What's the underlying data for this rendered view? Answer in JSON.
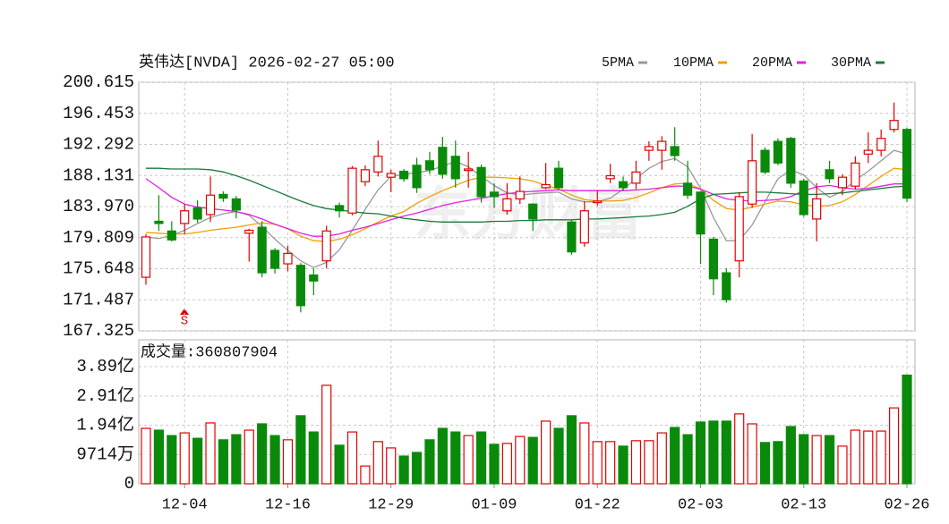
{
  "chart_data": [
    {
      "type": "candlestick",
      "title": "英伟达[NVDA] 2026-02-27 05:00",
      "up_color": "#e00000",
      "down_color": "#0a8a0a",
      "open": [
        174.5,
        182.0,
        180.7,
        181.7,
        183.8,
        182.9,
        185.6,
        185.0,
        180.4,
        181.2,
        178.1,
        176.3,
        176.1,
        174.8,
        176.7,
        184.1,
        183.1,
        187.3,
        188.6,
        187.9,
        188.7,
        189.5,
        190.1,
        191.9,
        190.7,
        188.8,
        189.2,
        185.9,
        183.4,
        185.0,
        184.3,
        186.5,
        189.1,
        181.9,
        179.1,
        184.5,
        187.7,
        187.3,
        187.1,
        191.5,
        191.5,
        192.0,
        187.1,
        185.9,
        179.6,
        175.1,
        176.7,
        184.3,
        191.5,
        192.7,
        193.1,
        187.4,
        182.3,
        188.9,
        186.5,
        186.7,
        191.0,
        191.5,
        194.3,
        194.3
      ],
      "high": [
        180.3,
        185.5,
        182.0,
        184.3,
        184.8,
        188.0,
        186.0,
        185.4,
        181.0,
        182.0,
        178.4,
        178.7,
        176.4,
        175.7,
        181.4,
        184.5,
        189.4,
        189.5,
        192.8,
        188.9,
        189.0,
        190.5,
        191.3,
        193.3,
        192.8,
        191.3,
        189.6,
        187.1,
        187.1,
        188.0,
        184.4,
        189.8,
        190.1,
        182.1,
        184.7,
        186.1,
        189.7,
        188.0,
        190.1,
        192.7,
        193.4,
        194.6,
        190.1,
        186.0,
        179.9,
        175.7,
        185.9,
        193.7,
        191.9,
        193.1,
        193.3,
        187.7,
        187.1,
        190.1,
        188.3,
        190.7,
        193.9,
        194.3,
        197.9,
        194.5
      ],
      "low": [
        173.5,
        180.7,
        179.3,
        180.3,
        181.8,
        181.9,
        184.6,
        182.4,
        176.6,
        174.5,
        175.0,
        175.3,
        169.8,
        172.1,
        175.7,
        182.5,
        182.8,
        186.7,
        188.0,
        185.9,
        187.3,
        185.8,
        188.3,
        187.7,
        186.5,
        186.5,
        184.5,
        183.8,
        182.9,
        184.3,
        180.7,
        186.3,
        186.3,
        177.5,
        178.6,
        184.1,
        187.1,
        186.1,
        186.3,
        190.1,
        188.9,
        190.1,
        185.0,
        176.3,
        172.1,
        171.1,
        174.5,
        183.8,
        188.3,
        189.5,
        186.5,
        182.6,
        179.3,
        187.1,
        185.5,
        186.3,
        189.8,
        190.7,
        193.9,
        184.6
      ],
      "close": [
        179.9,
        181.7,
        179.5,
        183.4,
        182.3,
        185.5,
        185.1,
        183.5,
        180.8,
        175.1,
        175.7,
        177.7,
        170.7,
        174.0,
        180.7,
        183.4,
        189.1,
        188.9,
        190.7,
        188.4,
        187.7,
        186.5,
        188.9,
        188.3,
        187.7,
        189.0,
        185.3,
        185.3,
        185.0,
        186.0,
        182.3,
        186.9,
        186.5,
        177.9,
        183.4,
        184.7,
        188.1,
        186.5,
        188.6,
        192.0,
        192.7,
        190.8,
        185.5,
        180.3,
        174.3,
        171.5,
        185.3,
        190.1,
        188.6,
        189.8,
        187.1,
        182.9,
        185.0,
        187.7,
        187.9,
        189.8,
        191.5,
        193.1,
        195.5,
        185.1
      ],
      "series": [
        {
          "name": "5PMA",
          "color": "#999999",
          "values": [
            179.9,
            179.7,
            180.1,
            180.8,
            181.7,
            182.5,
            183.0,
            183.3,
            182.8,
            181.3,
            179.6,
            178.1,
            176.7,
            175.8,
            176.5,
            178.2,
            180.8,
            183.6,
            186.2,
            188.0,
            188.3,
            188.5,
            188.8,
            189.4,
            190.0,
            189.3,
            188.0,
            186.8,
            185.8,
            185.5,
            185.7,
            185.8,
            185.9,
            185.0,
            184.6,
            184.6,
            185.1,
            186.3,
            187.7,
            189.1,
            190.0,
            190.4,
            189.3,
            186.4,
            182.5,
            179.4,
            179.4,
            181.5,
            184.6,
            187.7,
            188.9,
            188.2,
            186.5,
            185.2,
            186.0,
            187.5,
            188.7,
            190.1,
            191.5,
            191.0
          ]
        },
        {
          "name": "10PMA",
          "color": "#f0a000",
          "values": [
            180.5,
            180.4,
            180.3,
            180.3,
            180.5,
            180.8,
            181.0,
            181.2,
            181.5,
            181.8,
            181.6,
            181.0,
            180.0,
            179.4,
            179.3,
            179.6,
            180.2,
            181.0,
            181.9,
            182.7,
            183.3,
            184.4,
            185.3,
            186.1,
            186.8,
            187.5,
            187.9,
            187.9,
            187.8,
            187.7,
            187.4,
            186.8,
            186.3,
            185.5,
            184.9,
            184.7,
            184.7,
            184.8,
            185.2,
            185.8,
            186.5,
            187.0,
            187.1,
            186.3,
            184.8,
            183.7,
            183.5,
            183.9,
            184.3,
            184.7,
            184.6,
            184.2,
            184.0,
            184.1,
            184.6,
            185.6,
            186.8,
            188.0,
            189.1,
            188.9
          ]
        },
        {
          "name": "20PMA",
          "color": "#e020e0",
          "values": [
            187.7,
            186.5,
            185.2,
            184.3,
            183.9,
            183.7,
            183.5,
            183.3,
            182.9,
            182.3,
            181.6,
            181.0,
            180.4,
            180.0,
            180.0,
            180.3,
            180.8,
            181.2,
            181.7,
            182.2,
            182.7,
            183.1,
            183.6,
            184.1,
            184.5,
            184.8,
            185.1,
            185.4,
            185.7,
            185.9,
            186.0,
            186.1,
            186.2,
            186.1,
            186.1,
            186.1,
            186.1,
            186.1,
            186.2,
            186.3,
            186.5,
            186.7,
            186.7,
            186.3,
            185.6,
            185.0,
            184.8,
            184.7,
            184.8,
            184.9,
            185.3,
            186.1,
            186.6,
            186.8,
            186.5,
            186.3,
            186.4,
            186.7,
            187.0,
            187.0
          ]
        },
        {
          "name": "30PMA",
          "color": "#1a7a3a",
          "values": [
            189.1,
            189.1,
            189.0,
            189.0,
            189.0,
            188.9,
            188.6,
            188.1,
            187.5,
            186.8,
            186.1,
            185.4,
            184.7,
            184.1,
            183.7,
            183.5,
            183.3,
            183.1,
            183.0,
            182.7,
            182.4,
            182.2,
            182.0,
            181.9,
            181.9,
            181.9,
            181.9,
            182.0,
            182.0,
            182.1,
            182.1,
            182.2,
            182.2,
            182.2,
            182.3,
            182.3,
            182.4,
            182.5,
            182.6,
            182.7,
            182.9,
            183.2,
            184.0,
            185.0,
            185.6,
            185.7,
            185.8,
            185.9,
            185.9,
            185.8,
            185.7,
            185.6,
            185.6,
            185.7,
            185.8,
            186.0,
            186.2,
            186.4,
            186.6,
            186.7
          ]
        }
      ],
      "ylim": [
        167.325,
        200.615
      ],
      "yticks": [
        167.325,
        171.487,
        175.648,
        179.809,
        {
          "value": 183.97,
          "label": "183.970"
        },
        188.131,
        192.292,
        196.453,
        200.615
      ],
      "grid": true,
      "signal": "S",
      "watermark": "东方财富"
    },
    {
      "type": "bar",
      "title": "成交量:360807904",
      "categories": [
        null,
        null,
        null,
        "12-04",
        null,
        null,
        null,
        null,
        null,
        null,
        null,
        "12-16",
        null,
        null,
        null,
        null,
        null,
        null,
        null,
        "12-29",
        null,
        null,
        null,
        null,
        null,
        null,
        null,
        "01-09",
        null,
        null,
        null,
        null,
        null,
        null,
        null,
        "01-22",
        null,
        null,
        null,
        null,
        null,
        null,
        null,
        "02-03",
        null,
        null,
        null,
        null,
        null,
        null,
        null,
        "02-13",
        null,
        null,
        null,
        null,
        null,
        null,
        null,
        "02-26"
      ],
      "values": [
        184000000,
        178000000,
        160000000,
        169000000,
        151000000,
        202000000,
        146000000,
        163000000,
        178000000,
        199000000,
        160000000,
        146000000,
        226000000,
        172000000,
        327000000,
        128000000,
        172000000,
        59000000,
        140000000,
        119000000,
        92000000,
        104000000,
        146000000,
        184000000,
        172000000,
        160000000,
        172000000,
        131000000,
        134000000,
        157000000,
        154000000,
        208000000,
        184000000,
        226000000,
        202000000,
        140000000,
        140000000,
        125000000,
        143000000,
        143000000,
        169000000,
        187000000,
        163000000,
        205000000,
        208000000,
        208000000,
        232000000,
        199000000,
        137000000,
        140000000,
        190000000,
        163000000,
        160000000,
        160000000,
        125000000,
        178000000,
        175000000,
        175000000,
        252000000,
        360807904
      ],
      "ylim": [
        0,
        389000000
      ],
      "yticks": [
        0,
        {
          "value": 97140000,
          "label": "9714万"
        },
        {
          "value": 194000000,
          "label": "1.94亿"
        },
        {
          "value": 291000000,
          "label": "2.91亿"
        },
        {
          "value": 389000000,
          "label": "3.89亿"
        }
      ],
      "grid": true
    }
  ]
}
